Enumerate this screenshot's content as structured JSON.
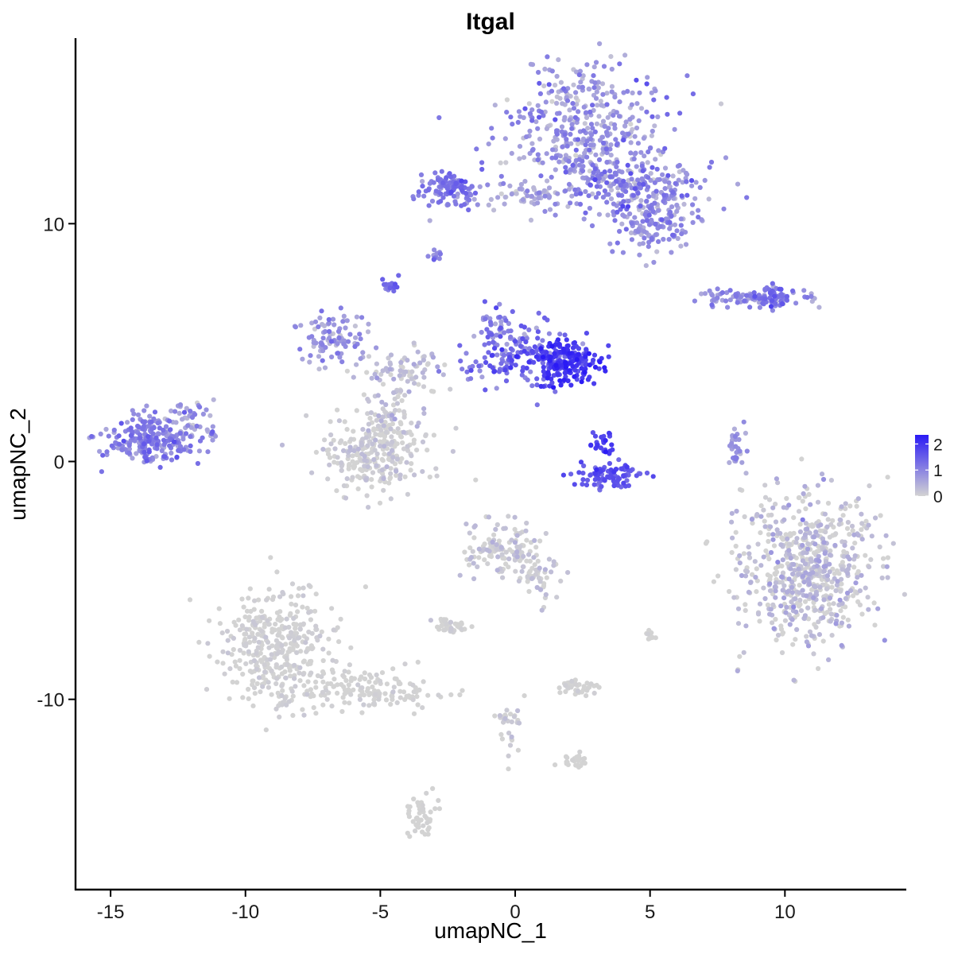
{
  "chart_data": {
    "type": "scatter",
    "title": "Itgal",
    "xlabel": "umapNC_1",
    "ylabel": "umapNC_2",
    "xlim": [
      -16.3,
      14.5
    ],
    "ylim": [
      -18.0,
      17.8
    ],
    "x_ticks": [
      {
        "value": -15,
        "label": "-15"
      },
      {
        "value": -10,
        "label": "-10"
      },
      {
        "value": -5,
        "label": "-5"
      },
      {
        "value": 0,
        "label": "0"
      },
      {
        "value": 5,
        "label": "5"
      },
      {
        "value": 10,
        "label": "10"
      }
    ],
    "y_ticks": [
      {
        "value": 10,
        "label": "10"
      },
      {
        "value": 0,
        "label": "0"
      },
      {
        "value": -10,
        "label": "-10"
      }
    ],
    "grid": false,
    "legend": {
      "placement": "right",
      "type": "colorbar",
      "min": 0,
      "max": 2.35,
      "ticks": [
        {
          "value": 2,
          "label": "2"
        },
        {
          "value": 1,
          "label": "1"
        },
        {
          "value": 0,
          "label": "0"
        }
      ]
    },
    "colors": {
      "low": "#d3d3d3",
      "high": "#2a1af5"
    },
    "clusters": [
      {
        "id": "top-right-cluster",
        "cx": 2.8,
        "cy": 13.8,
        "sx": 1.5,
        "sy": 1.6,
        "n": 450,
        "expr": 0.75,
        "spread": 0.6
      },
      {
        "id": "top-right-arm",
        "cx": 4.5,
        "cy": 11.5,
        "sx": 1.4,
        "sy": 0.6,
        "n": 200,
        "expr": 0.9,
        "spread": 0.6
      },
      {
        "id": "top-right-tail",
        "cx": 5.2,
        "cy": 9.9,
        "sx": 0.7,
        "sy": 0.55,
        "n": 120,
        "expr": 0.9,
        "spread": 0.5
      },
      {
        "id": "top-bridge",
        "cx": 0.6,
        "cy": 11.2,
        "sx": 1.0,
        "sy": 0.3,
        "n": 60,
        "expr": 0.6,
        "spread": 0.5
      },
      {
        "id": "top-left-small",
        "cx": -2.4,
        "cy": 11.5,
        "sx": 0.6,
        "sy": 0.35,
        "n": 110,
        "expr": 1.15,
        "spread": 0.4
      },
      {
        "id": "upper-mid-dot-a",
        "cx": -3.0,
        "cy": 8.7,
        "sx": 0.15,
        "sy": 0.12,
        "n": 12,
        "expr": 1.0,
        "spread": 0.3
      },
      {
        "id": "upper-mid-dot-b",
        "cx": -4.6,
        "cy": 7.4,
        "sx": 0.15,
        "sy": 0.18,
        "n": 18,
        "expr": 1.3,
        "spread": 0.3
      },
      {
        "id": "center-hot-core",
        "cx": 1.9,
        "cy": 4.2,
        "sx": 0.6,
        "sy": 0.45,
        "n": 180,
        "expr": 1.95,
        "spread": 0.35
      },
      {
        "id": "center-arm",
        "cx": 0.2,
        "cy": 4.4,
        "sx": 1.0,
        "sy": 0.6,
        "n": 160,
        "expr": 1.25,
        "spread": 0.6
      },
      {
        "id": "center-arm-upper",
        "cx": -0.6,
        "cy": 5.7,
        "sx": 0.4,
        "sy": 0.4,
        "n": 40,
        "expr": 1.0,
        "spread": 0.5
      },
      {
        "id": "center-mid-branch",
        "cx": -4.3,
        "cy": 3.8,
        "sx": 0.8,
        "sy": 0.5,
        "n": 80,
        "expr": 0.25,
        "spread": 0.3
      },
      {
        "id": "left-upper-branch",
        "cx": -6.8,
        "cy": 5.2,
        "sx": 0.6,
        "sy": 0.6,
        "n": 90,
        "expr": 0.75,
        "spread": 0.5
      },
      {
        "id": "center-lower-cluster",
        "cx": -5.2,
        "cy": 0.3,
        "sx": 1.0,
        "sy": 0.8,
        "n": 260,
        "expr": 0.12,
        "spread": 0.25
      },
      {
        "id": "center-stem",
        "cx": -4.6,
        "cy": 2.0,
        "sx": 0.5,
        "sy": 0.6,
        "n": 60,
        "expr": 0.2,
        "spread": 0.3
      },
      {
        "id": "right-of-center-arc",
        "cx": 3.5,
        "cy": -0.6,
        "sx": 0.6,
        "sy": 0.3,
        "n": 90,
        "expr": 1.6,
        "spread": 0.35
      },
      {
        "id": "right-of-center-dot",
        "cx": 3.3,
        "cy": 0.8,
        "sx": 0.25,
        "sy": 0.3,
        "n": 25,
        "expr": 1.9,
        "spread": 0.3
      },
      {
        "id": "far-left-cluster",
        "cx": -13.5,
        "cy": 1.0,
        "sx": 0.9,
        "sy": 0.5,
        "n": 240,
        "expr": 1.0,
        "spread": 0.45
      },
      {
        "id": "far-left-tail",
        "cx": -12.0,
        "cy": 1.9,
        "sx": 0.5,
        "sy": 0.4,
        "n": 40,
        "expr": 0.6,
        "spread": 0.5
      },
      {
        "id": "right-upper-strip",
        "cx": 8.7,
        "cy": 6.9,
        "sx": 1.1,
        "sy": 0.2,
        "n": 90,
        "expr": 0.8,
        "spread": 0.5
      },
      {
        "id": "right-upper-strip-end",
        "cx": 9.6,
        "cy": 6.9,
        "sx": 0.35,
        "sy": 0.25,
        "n": 40,
        "expr": 1.3,
        "spread": 0.4
      },
      {
        "id": "right-mid-sliver",
        "cx": 8.2,
        "cy": 0.4,
        "sx": 0.15,
        "sy": 0.55,
        "n": 30,
        "expr": 0.7,
        "spread": 0.4
      },
      {
        "id": "right-large-cluster",
        "cx": 10.8,
        "cy": -4.5,
        "sx": 1.3,
        "sy": 1.6,
        "n": 650,
        "expr": 0.3,
        "spread": 0.35
      },
      {
        "id": "mid-lower-cluster",
        "cx": -0.5,
        "cy": -3.8,
        "sx": 0.7,
        "sy": 0.6,
        "n": 130,
        "expr": 0.15,
        "spread": 0.25
      },
      {
        "id": "mid-lower-cluster-b",
        "cx": 0.8,
        "cy": -4.8,
        "sx": 0.4,
        "sy": 0.5,
        "n": 50,
        "expr": 0.15,
        "spread": 0.25
      },
      {
        "id": "mid-lower-small",
        "cx": -2.4,
        "cy": -6.9,
        "sx": 0.35,
        "sy": 0.15,
        "n": 35,
        "expr": 0.0,
        "spread": 0.1
      },
      {
        "id": "lower-left-cluster",
        "cx": -8.8,
        "cy": -8.0,
        "sx": 1.0,
        "sy": 1.3,
        "n": 380,
        "expr": 0.04,
        "spread": 0.12
      },
      {
        "id": "lower-left-tail",
        "cx": -5.5,
        "cy": -9.6,
        "sx": 1.4,
        "sy": 0.4,
        "n": 140,
        "expr": 0.0,
        "spread": 0.08
      },
      {
        "id": "lower-mid-dot-a",
        "cx": 2.4,
        "cy": -9.5,
        "sx": 0.35,
        "sy": 0.2,
        "n": 40,
        "expr": 0.0,
        "spread": 0.1
      },
      {
        "id": "lower-mid-dot-b",
        "cx": 2.3,
        "cy": -12.6,
        "sx": 0.3,
        "sy": 0.15,
        "n": 25,
        "expr": 0.0,
        "spread": 0.1
      },
      {
        "id": "lower-mid-strand",
        "cx": -0.1,
        "cy": -11.0,
        "sx": 0.25,
        "sy": 0.9,
        "n": 30,
        "expr": 0.1,
        "spread": 0.2
      },
      {
        "id": "bottom-small",
        "cx": -3.5,
        "cy": -14.8,
        "sx": 0.25,
        "sy": 0.4,
        "n": 45,
        "expr": 0.0,
        "spread": 0.05
      },
      {
        "id": "right-lower-dot",
        "cx": 5.0,
        "cy": -7.3,
        "sx": 0.12,
        "sy": 0.18,
        "n": 10,
        "expr": 0.0,
        "spread": 0.1
      }
    ]
  }
}
